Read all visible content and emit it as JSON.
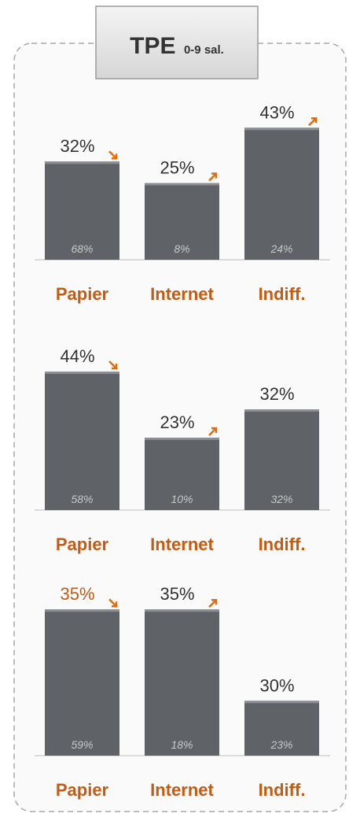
{
  "header": {
    "title": "TPE",
    "subtitle": "0-9 sal."
  },
  "chart_data": [
    {
      "type": "bar",
      "categories": [
        "Papier",
        "Internet",
        "Indiff."
      ],
      "values": [
        32,
        25,
        43
      ],
      "value_labels": [
        "32%",
        "25%",
        "43%"
      ],
      "inner_values": [
        68,
        8,
        24
      ],
      "inner_value_labels": [
        "68%",
        "8%",
        "24%"
      ],
      "trends": [
        "down",
        "up",
        "up"
      ],
      "value_label_colors": [
        "#333333",
        "#333333",
        "#333333"
      ],
      "color": "#5f6367",
      "ylim": [
        0,
        50
      ]
    },
    {
      "type": "bar",
      "categories": [
        "Papier",
        "Internet",
        "Indiff."
      ],
      "values": [
        44,
        23,
        32
      ],
      "value_labels": [
        "44%",
        "23%",
        "32%"
      ],
      "inner_values": [
        58,
        10,
        32
      ],
      "inner_value_labels": [
        "58%",
        "10%",
        "32%"
      ],
      "trends": [
        "down",
        "up",
        null
      ],
      "value_label_colors": [
        "#333333",
        "#333333",
        "#333333"
      ],
      "color": "#5f6367",
      "ylim": [
        0,
        50
      ]
    },
    {
      "type": "bar",
      "categories": [
        "Papier",
        "Internet",
        "Indiff."
      ],
      "values": [
        35,
        35,
        30
      ],
      "value_labels": [
        "35%",
        "35%",
        "30%"
      ],
      "inner_values": [
        59,
        18,
        23
      ],
      "inner_value_labels": [
        "59%",
        "18%",
        "23%"
      ],
      "trends": [
        "down",
        "up",
        null
      ],
      "value_label_colors": [
        "#c55a11",
        "#333333",
        "#333333"
      ],
      "color": "#5f6367",
      "ylim": [
        27,
        36
      ]
    }
  ]
}
